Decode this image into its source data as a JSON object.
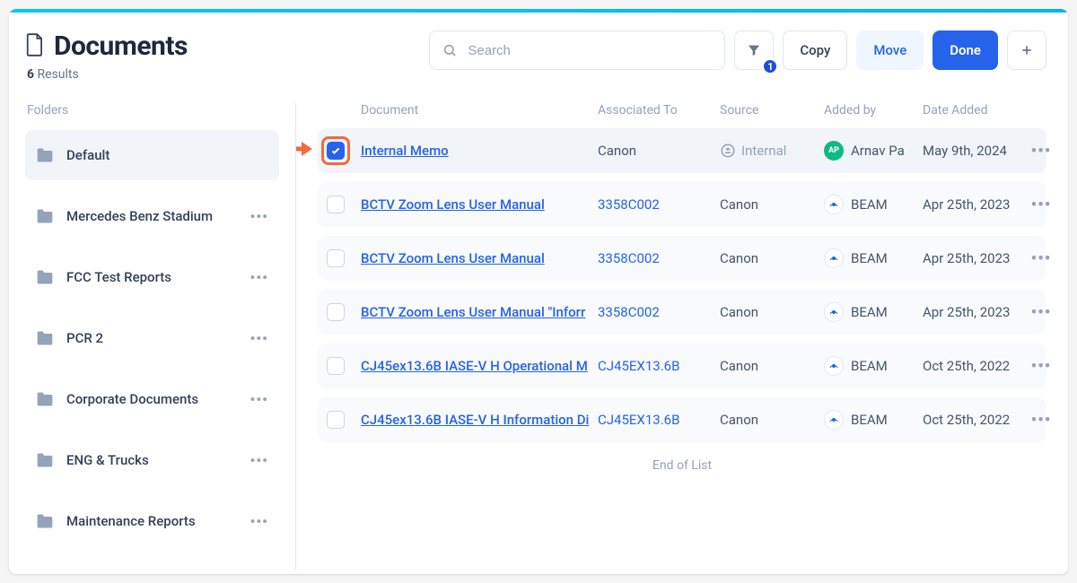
{
  "page": {
    "title": "Documents",
    "results_count": "6",
    "results_label": "Results"
  },
  "search": {
    "placeholder": "Search"
  },
  "filter": {
    "badge": "1"
  },
  "buttons": {
    "copy": "Copy",
    "move": "Move",
    "done": "Done"
  },
  "sidebar": {
    "label": "Folders",
    "folders": [
      {
        "label": "Default",
        "selected": true,
        "more": false
      },
      {
        "label": "Mercedes Benz Stadium",
        "selected": false,
        "more": true
      },
      {
        "label": "FCC Test Reports",
        "selected": false,
        "more": true
      },
      {
        "label": "PCR 2",
        "selected": false,
        "more": true
      },
      {
        "label": "Corporate Documents",
        "selected": false,
        "more": true
      },
      {
        "label": "ENG & Trucks",
        "selected": false,
        "more": true
      },
      {
        "label": "Maintenance Reports",
        "selected": false,
        "more": true
      }
    ]
  },
  "table": {
    "headers": {
      "doc": "Document",
      "assoc": "Associated To",
      "source": "Source",
      "added_by": "Added by",
      "date": "Date Added"
    },
    "rows": [
      {
        "checked": true,
        "highlighted": true,
        "callout": true,
        "doc": "Internal Memo",
        "assoc": "Canon",
        "assoc_is_link": false,
        "source_internal": true,
        "source": "Internal",
        "added_by": "Arnav Pa",
        "avatar_initials": "AP",
        "avatar_type": "green",
        "date": "May 9th, 2024"
      },
      {
        "checked": false,
        "doc": "BCTV Zoom Lens User Manual",
        "assoc": "3358C002",
        "assoc_is_link": true,
        "source": "Canon",
        "added_by": "BEAM",
        "avatar_type": "beam",
        "date": "Apr 25th, 2023"
      },
      {
        "checked": false,
        "doc": "BCTV Zoom Lens User Manual",
        "assoc": "3358C002",
        "assoc_is_link": true,
        "source": "Canon",
        "added_by": "BEAM",
        "avatar_type": "beam",
        "date": "Apr 25th, 2023"
      },
      {
        "checked": false,
        "doc": "BCTV Zoom Lens User Manual \"Inforr",
        "assoc": "3358C002",
        "assoc_is_link": true,
        "source": "Canon",
        "added_by": "BEAM",
        "avatar_type": "beam",
        "date": "Apr 25th, 2023"
      },
      {
        "checked": false,
        "doc": "CJ45ex13.6B IASE-V H Operational M",
        "assoc": "CJ45EX13.6B",
        "assoc_is_link": true,
        "source": "Canon",
        "added_by": "BEAM",
        "avatar_type": "beam",
        "date": "Oct 25th, 2022"
      },
      {
        "checked": false,
        "doc": "CJ45ex13.6B IASE-V H Information Di",
        "assoc": "CJ45EX13.6B",
        "assoc_is_link": true,
        "source": "Canon",
        "added_by": "BEAM",
        "avatar_type": "beam",
        "date": "Oct 25th, 2022"
      }
    ],
    "end_of_list": "End of List"
  }
}
